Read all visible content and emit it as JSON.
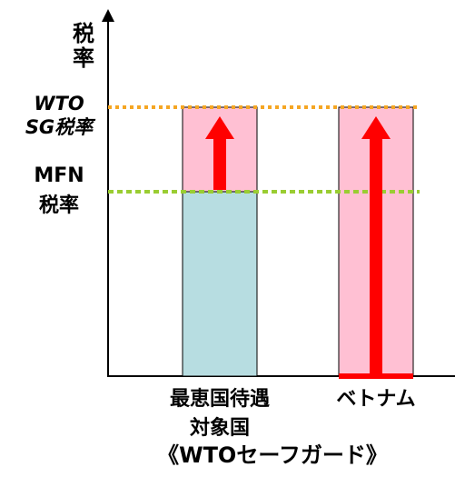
{
  "y_axis_label_line1": "税",
  "y_axis_label_line2": "率",
  "wto_sg_label_line1": "WTO",
  "wto_sg_label_line2": "SG税率",
  "mfn_label_line1": "MFN",
  "mfn_label_line2": "税率",
  "category_mfn_line1": "最恵国待遇",
  "category_mfn_line2": "対象国",
  "category_vietnam": "ベトナム",
  "caption": "《WTOセーフガード》",
  "colors": {
    "wto_line": "#f5a623",
    "mfn_line": "#9acd32",
    "mfn_bar_fill": "#b7dde1",
    "increase_fill": "#ffc0d3",
    "arrow": "#ff0000",
    "axis": "#000000"
  }
}
